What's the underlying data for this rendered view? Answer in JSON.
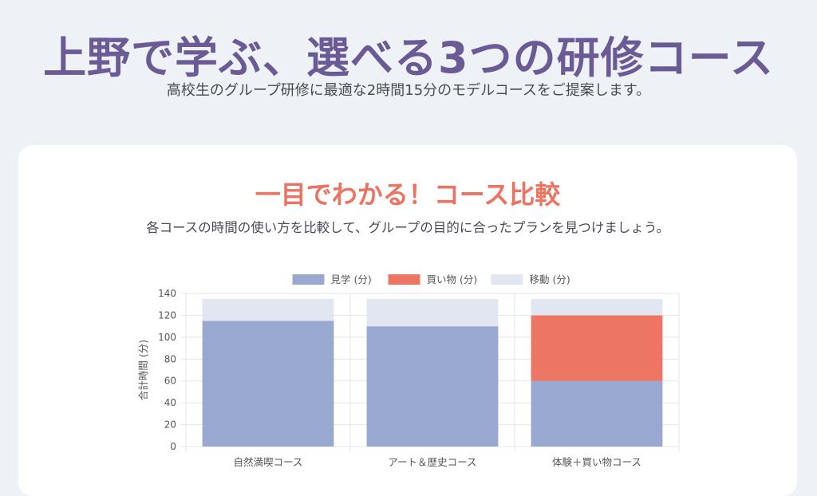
{
  "header": {
    "title": "上野で学ぶ、選べる3つの研修コース",
    "subtitle": "高校生のグループ研修に最適な2時間15分のモデルコースをご提案します。"
  },
  "section": {
    "title": "一目でわかる！コース比較",
    "subtitle": "各コースの時間の使い方を比較して、グループの目的に合ったプランを見つけましょう。"
  },
  "chart_data": {
    "type": "bar",
    "stacked": true,
    "categories": [
      "自然満喫コース",
      "アート＆歴史コース",
      "体験＋買い物コース"
    ],
    "series": [
      {
        "name": "見学 (分)",
        "values": [
          115,
          110,
          60
        ],
        "color": "#98a8cf"
      },
      {
        "name": "買い物 (分)",
        "values": [
          0,
          0,
          60
        ],
        "color": "#ec7663"
      },
      {
        "name": "移動 (分)",
        "values": [
          20,
          25,
          15
        ],
        "color": "#e2e6f0"
      }
    ],
    "ylabel": "合計時間 (分)",
    "xlabel": "",
    "ylim": [
      0,
      140
    ],
    "yticks": [
      0,
      20,
      40,
      60,
      80,
      100,
      120,
      140
    ],
    "grid": true,
    "legend_position": "top"
  }
}
